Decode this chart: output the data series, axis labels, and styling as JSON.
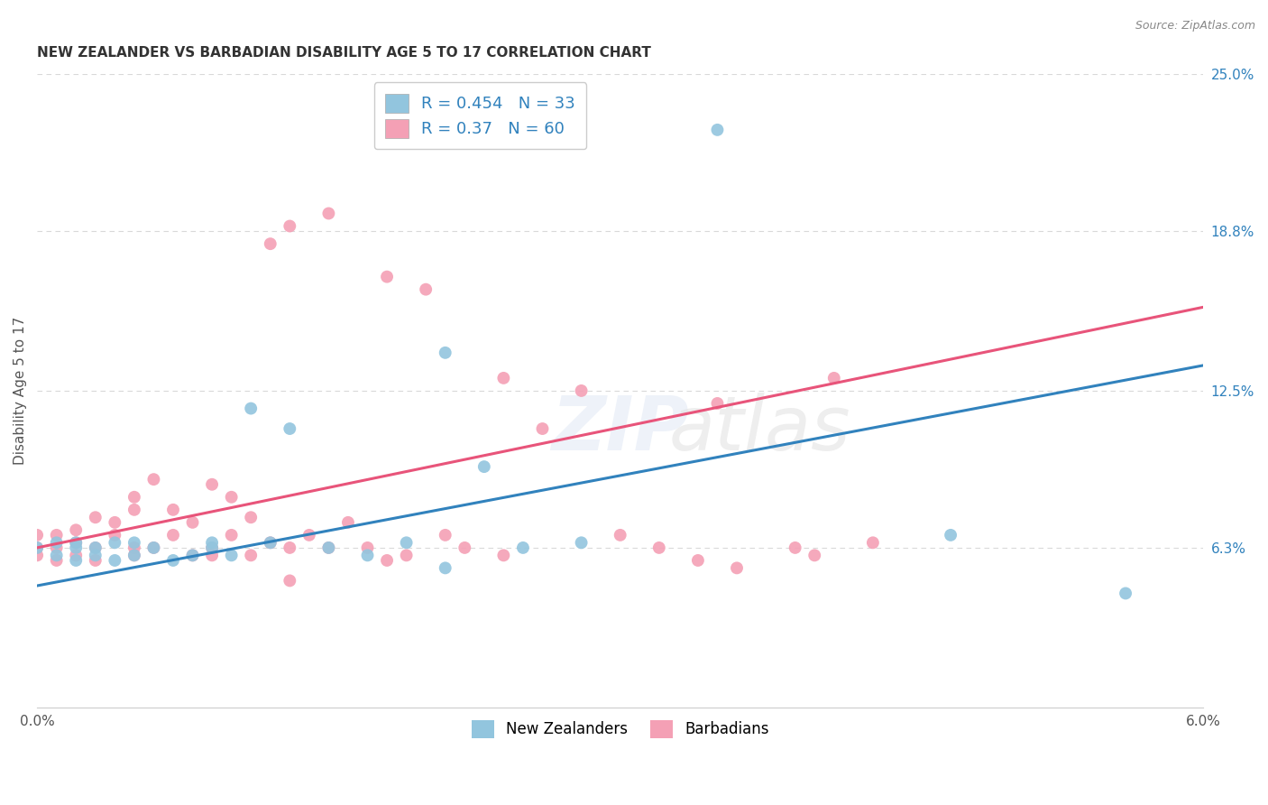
{
  "title": "NEW ZEALANDER VS BARBADIAN DISABILITY AGE 5 TO 17 CORRELATION CHART",
  "source": "Source: ZipAtlas.com",
  "ylabel": "Disability Age 5 to 17",
  "xlim": [
    0.0,
    0.06
  ],
  "ylim": [
    0.0,
    0.25
  ],
  "nz_color": "#92c5de",
  "barb_color": "#f4a0b5",
  "nz_line_color": "#3182bd",
  "barb_line_color": "#e8547a",
  "nz_R": 0.454,
  "nz_N": 33,
  "barb_R": 0.37,
  "barb_N": 60,
  "nz_x": [
    0.0,
    0.001,
    0.001,
    0.002,
    0.002,
    0.002,
    0.003,
    0.003,
    0.004,
    0.004,
    0.005,
    0.005,
    0.006,
    0.007,
    0.008,
    0.009,
    0.009,
    0.01,
    0.011,
    0.012,
    0.013,
    0.015,
    0.017,
    0.019,
    0.021,
    0.023,
    0.025,
    0.028,
    0.021,
    0.035,
    0.047,
    0.056,
    0.025
  ],
  "nz_y": [
    0.063,
    0.06,
    0.065,
    0.058,
    0.063,
    0.065,
    0.063,
    0.06,
    0.058,
    0.065,
    0.06,
    0.065,
    0.063,
    0.058,
    0.06,
    0.063,
    0.065,
    0.06,
    0.118,
    0.065,
    0.11,
    0.063,
    0.06,
    0.065,
    0.14,
    0.095,
    0.063,
    0.065,
    0.055,
    0.228,
    0.068,
    0.045,
    0.23
  ],
  "barb_x": [
    0.0,
    0.0,
    0.0,
    0.001,
    0.001,
    0.001,
    0.002,
    0.002,
    0.002,
    0.003,
    0.003,
    0.003,
    0.004,
    0.004,
    0.005,
    0.005,
    0.005,
    0.006,
    0.006,
    0.007,
    0.007,
    0.008,
    0.008,
    0.009,
    0.009,
    0.01,
    0.01,
    0.011,
    0.011,
    0.012,
    0.012,
    0.013,
    0.013,
    0.014,
    0.015,
    0.015,
    0.016,
    0.017,
    0.018,
    0.019,
    0.02,
    0.021,
    0.022,
    0.024,
    0.026,
    0.028,
    0.03,
    0.032,
    0.034,
    0.036,
    0.039,
    0.04,
    0.041,
    0.043,
    0.035,
    0.024,
    0.018,
    0.013,
    0.009,
    0.005
  ],
  "barb_y": [
    0.06,
    0.063,
    0.068,
    0.058,
    0.063,
    0.068,
    0.06,
    0.065,
    0.07,
    0.058,
    0.063,
    0.075,
    0.068,
    0.073,
    0.06,
    0.078,
    0.083,
    0.063,
    0.09,
    0.068,
    0.078,
    0.06,
    0.073,
    0.063,
    0.088,
    0.068,
    0.083,
    0.06,
    0.075,
    0.065,
    0.183,
    0.063,
    0.19,
    0.068,
    0.063,
    0.195,
    0.073,
    0.063,
    0.17,
    0.06,
    0.165,
    0.068,
    0.063,
    0.13,
    0.11,
    0.125,
    0.068,
    0.063,
    0.058,
    0.055,
    0.063,
    0.06,
    0.13,
    0.065,
    0.12,
    0.06,
    0.058,
    0.05,
    0.06,
    0.063
  ],
  "nz_line_x": [
    0.0,
    0.06
  ],
  "nz_line_y": [
    0.048,
    0.135
  ],
  "barb_line_x": [
    0.0,
    0.06
  ],
  "barb_line_y": [
    0.063,
    0.158
  ],
  "background_color": "#ffffff",
  "grid_color": "#d9d9d9",
  "ytick_vals": [
    0.063,
    0.125,
    0.188,
    0.25
  ],
  "ytick_labels": [
    "6.3%",
    "12.5%",
    "18.8%",
    "25.0%"
  ],
  "xtick_vals": [
    0.0,
    0.01,
    0.02,
    0.03,
    0.04,
    0.05,
    0.06
  ],
  "xtick_labels": [
    "0.0%",
    "",
    "",
    "",
    "",
    "",
    "6.0%"
  ]
}
